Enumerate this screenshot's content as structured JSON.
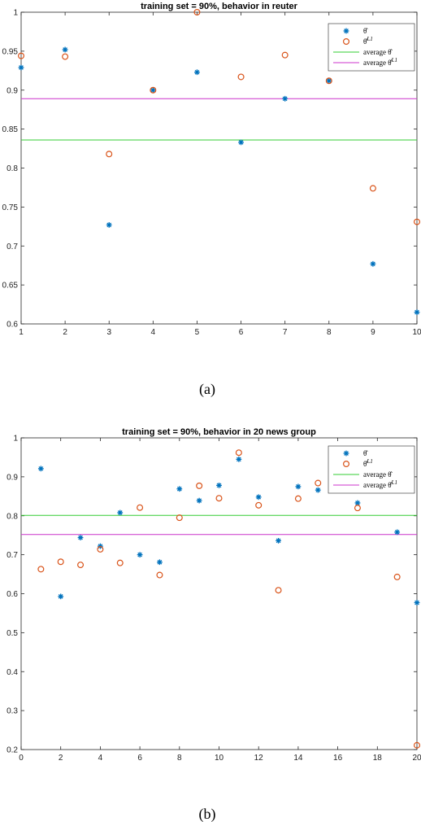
{
  "chart_data": [
    {
      "type": "scatter",
      "title": "training set = 90%, behavior in reuter",
      "caption": "(a)",
      "xlim": [
        1,
        10
      ],
      "ylim": [
        0.6,
        1.0
      ],
      "xticks": [
        1,
        2,
        3,
        4,
        5,
        6,
        7,
        8,
        9,
        10
      ],
      "yticks": [
        0.6,
        0.65,
        0.7,
        0.75,
        0.8,
        0.85,
        0.9,
        0.95,
        1
      ],
      "grid": false,
      "legend_position": "top-right",
      "series": [
        {
          "name": "θ̂",
          "marker": "asterisk",
          "color": "#0072bd",
          "x": [
            1,
            2,
            3,
            4,
            5,
            6,
            7,
            8,
            9,
            10
          ],
          "y": [
            0.929,
            0.952,
            0.727,
            0.9,
            0.923,
            0.833,
            0.889,
            0.912,
            0.677,
            0.615
          ]
        },
        {
          "name": "θ̂^{L1}",
          "marker": "circle",
          "color": "#d95319",
          "x": [
            1,
            2,
            3,
            4,
            5,
            6,
            7,
            8,
            9,
            10
          ],
          "y": [
            0.944,
            0.943,
            0.818,
            0.9,
            1.0,
            0.917,
            0.945,
            0.912,
            0.774,
            0.731
          ]
        }
      ],
      "hlines": [
        {
          "name": "average θ̂",
          "color": "#33cc33",
          "y": 0.836
        },
        {
          "name": "average θ̂^{L1}",
          "color": "#cc33cc",
          "y": 0.889
        }
      ]
    },
    {
      "type": "scatter",
      "title": "training set = 90%, behavior in 20 news group",
      "caption": "(b)",
      "xlim": [
        0,
        20
      ],
      "ylim": [
        0.2,
        1.0
      ],
      "xticks": [
        0,
        2,
        4,
        6,
        8,
        10,
        12,
        14,
        16,
        18,
        20
      ],
      "yticks": [
        0.2,
        0.3,
        0.4,
        0.5,
        0.6,
        0.7,
        0.8,
        0.9,
        1
      ],
      "grid": false,
      "legend_position": "top-right",
      "series": [
        {
          "name": "θ̂",
          "marker": "asterisk",
          "color": "#0072bd",
          "x": [
            1,
            2,
            3,
            4,
            5,
            6,
            7,
            8,
            9,
            10,
            11,
            12,
            13,
            14,
            15,
            17,
            19,
            20
          ],
          "y": [
            0.921,
            0.593,
            0.744,
            0.722,
            0.808,
            0.7,
            0.681,
            0.869,
            0.839,
            0.878,
            0.945,
            0.848,
            0.736,
            0.875,
            0.866,
            0.833,
            0.758,
            0.577
          ]
        },
        {
          "name": "θ̂^{L1}",
          "marker": "circle",
          "color": "#d95319",
          "x": [
            1,
            2,
            3,
            4,
            5,
            6,
            7,
            8,
            9,
            10,
            11,
            12,
            13,
            14,
            15,
            17,
            19,
            20
          ],
          "y": [
            0.663,
            0.682,
            0.674,
            0.714,
            0.679,
            0.821,
            0.648,
            0.795,
            0.877,
            0.845,
            0.962,
            0.827,
            0.609,
            0.844,
            0.884,
            0.82,
            0.643,
            0.211
          ]
        }
      ],
      "hlines": [
        {
          "name": "average θ̂",
          "color": "#33cc33",
          "y": 0.801
        },
        {
          "name": "average θ̂^{L1}",
          "color": "#cc33cc",
          "y": 0.752
        }
      ]
    }
  ]
}
